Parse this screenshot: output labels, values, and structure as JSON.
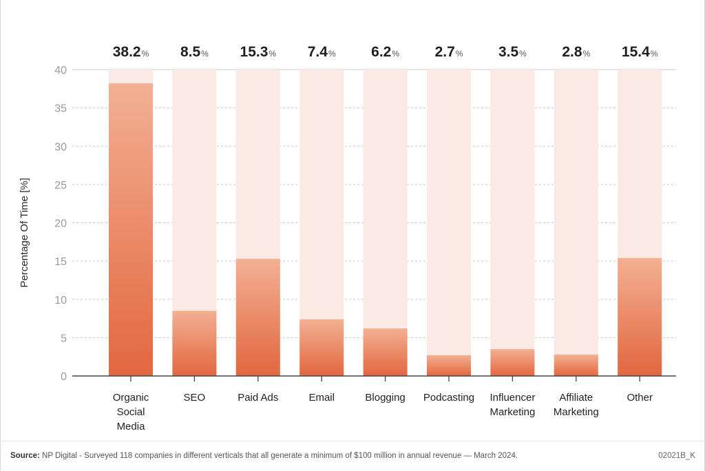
{
  "chart_data": {
    "type": "bar",
    "ylabel": "Percentage Of Time [%]",
    "xlabel": "",
    "ylim": [
      0,
      40
    ],
    "yticks": [
      0,
      5,
      10,
      15,
      20,
      25,
      30,
      35,
      40
    ],
    "grid": "horizontal dashed",
    "categories": [
      [
        "Organic",
        "Social",
        "Media"
      ],
      [
        "SEO"
      ],
      [
        "Paid Ads"
      ],
      [
        "Email"
      ],
      [
        "Blogging"
      ],
      [
        "Podcasting"
      ],
      [
        "Influencer",
        "Marketing"
      ],
      [
        "Affiliate",
        "Marketing"
      ],
      [
        "Other"
      ]
    ],
    "values": [
      38.2,
      8.5,
      15.3,
      7.4,
      6.2,
      2.7,
      3.5,
      2.8,
      15.4
    ],
    "value_labels": [
      "38.2",
      "8.5",
      "15.3",
      "7.4",
      "6.2",
      "2.7",
      "3.5",
      "2.8",
      "15.4"
    ],
    "value_unit": "%",
    "colors": {
      "bar_top": "#f3b093",
      "bar_bottom": "#e2673f",
      "track": "#fbe9e4",
      "grid": "#c9c9c9",
      "axis": "#444444",
      "tick_text": "#9a9a9a"
    }
  },
  "footer": {
    "source_label": "Source:",
    "source_text": " NP Digital - Surveyed 118 companies in different verticals that all generate a minimum of $100 million in annual revenue — March 2024.",
    "code": "02021B_K"
  }
}
